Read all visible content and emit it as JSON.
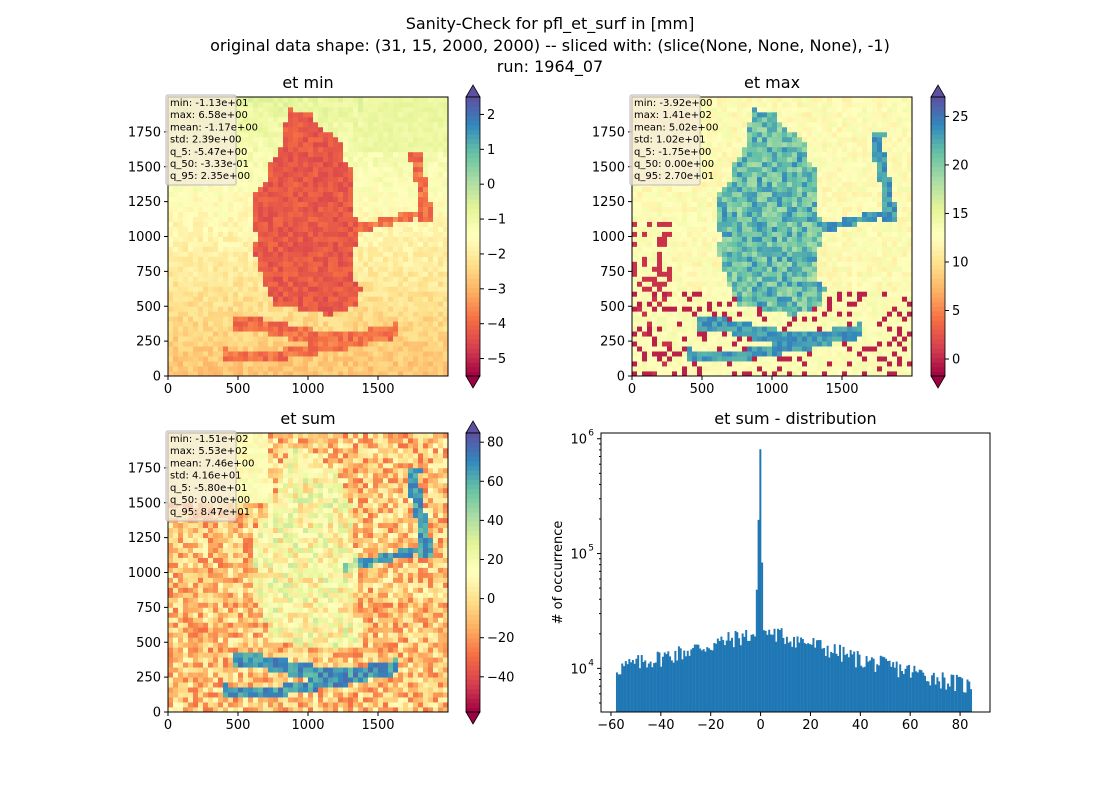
{
  "figure": {
    "title_lines": [
      "Sanity-Check for pfl_et_surf in [mm]",
      "original data shape: (31, 15, 2000, 2000) -- sliced with: (slice(None, None, None), -1)",
      "run: 1964_07"
    ]
  },
  "chart_data": [
    {
      "type": "heatmap",
      "title": "et min",
      "xticks": [
        0,
        500,
        1000,
        1500
      ],
      "yticks": [
        0,
        250,
        500,
        750,
        1000,
        1250,
        1500,
        1750
      ],
      "xlim": [
        0,
        2000
      ],
      "ylim": [
        0,
        2000
      ],
      "colormap": "Spectral",
      "colorbar": {
        "min": -5.5,
        "max": 2.5,
        "ticks": [
          2,
          1,
          0,
          -1,
          -2,
          -3,
          -4,
          -5
        ],
        "tick_labels": [
          "2",
          "1",
          "0",
          "−1",
          "−2",
          "−3",
          "−4",
          "−5"
        ]
      },
      "stats": [
        "min: -1.13e+01",
        "max: 6.58e+00",
        "mean: -1.17e+00",
        "std: 2.39e+00",
        "q_5: -5.47e+00",
        "q_50: -3.33e-01",
        "q_95: 2.35e+00"
      ]
    },
    {
      "type": "heatmap",
      "title": "et max",
      "xticks": [
        0,
        500,
        1000,
        1500
      ],
      "yticks": [
        0,
        250,
        500,
        750,
        1000,
        1250,
        1500,
        1750
      ],
      "xlim": [
        0,
        2000
      ],
      "ylim": [
        0,
        2000
      ],
      "colormap": "Spectral",
      "colorbar": {
        "min": -1.75,
        "max": 27,
        "ticks": [
          25,
          20,
          15,
          10,
          5,
          0
        ],
        "tick_labels": [
          "25",
          "20",
          "15",
          "10",
          "5",
          "0"
        ]
      },
      "stats": [
        "min: -3.92e+00",
        "max: 1.41e+02",
        "mean: 5.02e+00",
        "std: 1.02e+01",
        "q_5: -1.75e+00",
        "q_50: 0.00e+00",
        "q_95: 2.70e+01"
      ]
    },
    {
      "type": "heatmap",
      "title": "et sum",
      "xticks": [
        0,
        500,
        1000,
        1500
      ],
      "yticks": [
        0,
        250,
        500,
        750,
        1000,
        1250,
        1500,
        1750
      ],
      "xlim": [
        0,
        2000
      ],
      "ylim": [
        0,
        2000
      ],
      "colormap": "Spectral",
      "colorbar": {
        "min": -58,
        "max": 84.7,
        "ticks": [
          80,
          60,
          40,
          20,
          0,
          -20,
          -40
        ],
        "tick_labels": [
          "80",
          "60",
          "40",
          "20",
          "0",
          "−20",
          "−40"
        ]
      },
      "stats": [
        "min: -1.51e+02",
        "max: 5.53e+02",
        "mean: 7.46e+00",
        "std: 4.16e+01",
        "q_5: -5.80e+01",
        "q_50: 0.00e+00",
        "q_95: 8.47e+01"
      ]
    },
    {
      "type": "bar",
      "title": "et sum - distribution",
      "ylabel": "# of occurrence",
      "xlim": [
        -64,
        92
      ],
      "ylim_log10": [
        3.62,
        6.05
      ],
      "log_y": true,
      "xticks": [
        -60,
        -40,
        -20,
        0,
        20,
        40,
        60,
        80
      ],
      "xtick_labels": [
        "−60",
        "−40",
        "−20",
        "0",
        "20",
        "40",
        "60",
        "80"
      ],
      "yticks": [
        10000,
        100000,
        1000000
      ],
      "ytick_labels": [
        "10",
        "10",
        "10"
      ],
      "ytick_exponents": [
        "4",
        "5",
        "6"
      ],
      "color": "#1f77b4",
      "bin_width": 0.71,
      "x": [
        -58,
        84.4
      ],
      "envelope": [
        [
          -58,
          10000
        ],
        [
          -40,
          12500
        ],
        [
          -20,
          16000
        ],
        [
          -10,
          18500
        ],
        [
          -2,
          20000
        ],
        [
          0,
          810000
        ],
        [
          1,
          21000
        ],
        [
          10,
          19000
        ],
        [
          20,
          16500
        ],
        [
          40,
          12000
        ],
        [
          60,
          9500
        ],
        [
          84,
          7000
        ]
      ]
    }
  ]
}
